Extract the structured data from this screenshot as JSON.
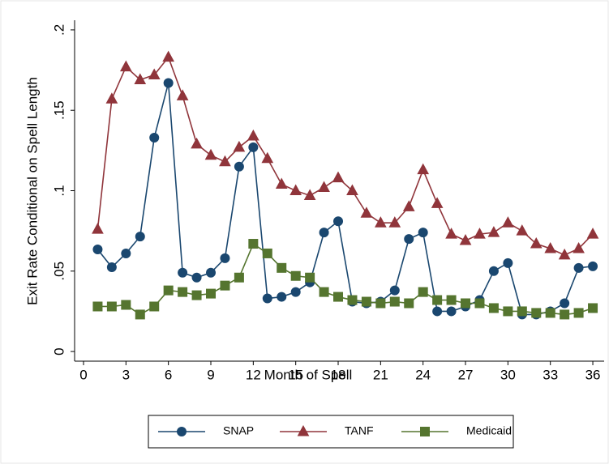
{
  "chart_data": {
    "type": "line",
    "ylabel": "Exit Rate Conditional on Spell Length",
    "xlabel": "Month of Spell",
    "x": [
      1,
      2,
      3,
      4,
      5,
      6,
      7,
      8,
      9,
      10,
      11,
      12,
      13,
      14,
      15,
      16,
      17,
      18,
      19,
      20,
      21,
      22,
      23,
      24,
      25,
      26,
      27,
      28,
      29,
      30,
      31,
      32,
      33,
      34,
      35,
      36
    ],
    "series": [
      {
        "name": "SNAP",
        "color": "#1a476f",
        "marker": "circle",
        "values": [
          0.0635,
          0.0524,
          0.061,
          0.0715,
          0.133,
          0.167,
          0.049,
          0.046,
          0.049,
          0.058,
          0.115,
          0.127,
          0.033,
          0.034,
          0.037,
          0.043,
          0.074,
          0.081,
          0.031,
          0.03,
          0.031,
          0.038,
          0.07,
          0.074,
          0.025,
          0.025,
          0.028,
          0.032,
          0.05,
          0.055,
          0.023,
          0.023,
          0.025,
          0.03,
          0.052,
          0.053
        ]
      },
      {
        "name": "TANF",
        "color": "#90353b",
        "marker": "triangle",
        "values": [
          0.076,
          0.157,
          0.177,
          0.169,
          0.172,
          0.183,
          0.159,
          0.129,
          0.122,
          0.118,
          0.127,
          0.134,
          0.12,
          0.104,
          0.1,
          0.097,
          0.102,
          0.108,
          0.1,
          0.086,
          0.08,
          0.08,
          0.09,
          0.113,
          0.092,
          0.073,
          0.069,
          0.073,
          0.074,
          0.08,
          0.075,
          0.067,
          0.064,
          0.06,
          0.064,
          0.073
        ]
      },
      {
        "name": "Medicaid",
        "color": "#55752f",
        "marker": "square",
        "values": [
          0.028,
          0.028,
          0.029,
          0.023,
          0.028,
          0.038,
          0.037,
          0.035,
          0.036,
          0.041,
          0.046,
          0.067,
          0.061,
          0.052,
          0.047,
          0.046,
          0.037,
          0.034,
          0.032,
          0.031,
          0.03,
          0.031,
          0.03,
          0.037,
          0.032,
          0.032,
          0.03,
          0.03,
          0.027,
          0.025,
          0.025,
          0.024,
          0.024,
          0.023,
          0.024,
          0.027
        ]
      }
    ],
    "xlim": [
      -0.63,
      36.8
    ],
    "xticks": [
      0,
      3,
      6,
      9,
      12,
      15,
      18,
      21,
      24,
      27,
      30,
      33,
      36
    ],
    "ylim": [
      -0.006,
      0.206
    ],
    "yticks": [
      0,
      {
        "value": 0.05,
        "label": ".05"
      },
      {
        "value": 0.1,
        "label": ".1"
      },
      {
        "value": 0.15,
        "label": ".15"
      },
      {
        "value": 0.2,
        "label": ".2"
      }
    ],
    "grid": false,
    "legend": "bottom"
  }
}
